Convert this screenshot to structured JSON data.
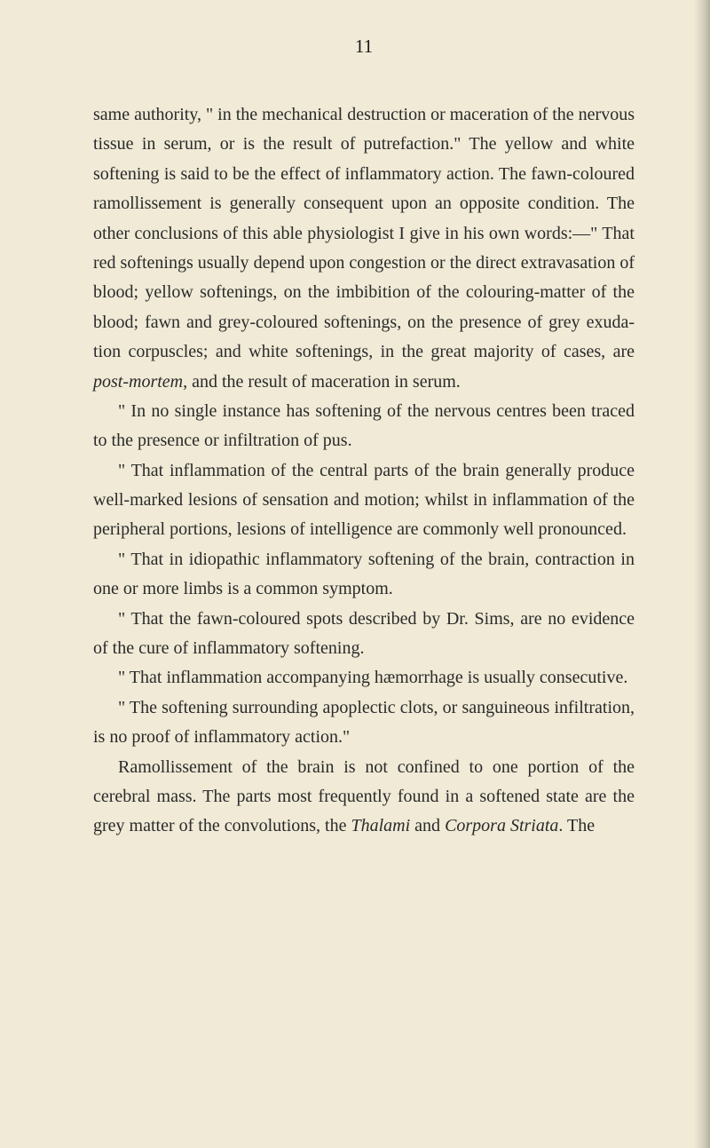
{
  "page": {
    "number": "11",
    "background_color": "#f0ead6",
    "text_color": "#2a2a2a",
    "font_family": "Georgia, serif",
    "body_fontsize": 20,
    "line_height": 1.67,
    "paragraphs": [
      {
        "indent": false,
        "segments": [
          {
            "text": "same authority, \" in the mechanical destruction or ma­ceration of the nervous tissue in serum, or is the result of putrefaction.\" The yellow and white softening is said to be the effect of inflammatory action. The fawn-coloured ramollissement is generally consequent upon an opposite condition. The other conclusions of this able physiologist I give in his own words:—\" That red softenings usually depend upon congestion or the direct extravasation of blood; yellow softenings, on the imbi­bition of the colouring-matter of the blood; fawn and grey-coloured softenings, on the presence of grey exuda­tion corpuscles; and white softenings, in the great ma­jority of cases, are ",
            "italic": false
          },
          {
            "text": "post-mortem",
            "italic": true
          },
          {
            "text": ", and the result of mace­ration in serum.",
            "italic": false
          }
        ]
      },
      {
        "indent": true,
        "segments": [
          {
            "text": "\" In no single instance has softening of the nervous centres been traced to the presence or infiltration of pus.",
            "italic": false
          }
        ]
      },
      {
        "indent": true,
        "segments": [
          {
            "text": "\" That inflammation of the central parts of the brain generally produce well-marked lesions of sensation and motion; whilst in inflammation of the peripheral por­tions, lesions of intelligence are commonly well pro­nounced.",
            "italic": false
          }
        ]
      },
      {
        "indent": true,
        "segments": [
          {
            "text": "\" That in idiopathic inflammatory softening of the brain, contraction in one or more limbs is a common symptom.",
            "italic": false
          }
        ]
      },
      {
        "indent": true,
        "segments": [
          {
            "text": "\" That the fawn-coloured spots described by Dr. Sims, are no evidence of the cure of inflammatory softening.",
            "italic": false
          }
        ]
      },
      {
        "indent": true,
        "segments": [
          {
            "text": "\" That inflammation accompanying hæmorrhage is usually consecutive.",
            "italic": false
          }
        ]
      },
      {
        "indent": true,
        "segments": [
          {
            "text": "\" The softening surrounding apoplectic clots, or san­guineous infiltration, is no proof of inflammatory action.\"",
            "italic": false
          }
        ]
      },
      {
        "indent": true,
        "segments": [
          {
            "text": "Ramollissement of the brain is not confined to one portion of the cerebral mass. The parts most frequently found in a softened state are the grey matter of the convolutions, the ",
            "italic": false
          },
          {
            "text": "Thalami",
            "italic": true
          },
          {
            "text": " and ",
            "italic": false
          },
          {
            "text": "Corpora Striata",
            "italic": true
          },
          {
            "text": ". The",
            "italic": false
          }
        ]
      }
    ]
  }
}
